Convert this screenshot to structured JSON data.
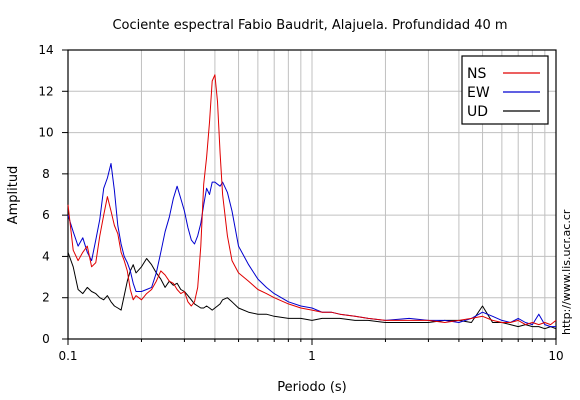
{
  "chart_data": {
    "type": "line",
    "title": "Cociente espectral Fabio Baudrit, Alajuela. Profundidad 40 m",
    "xlabel": "Periodo (s)",
    "ylabel": "Amplitud",
    "xscale": "log",
    "xlim": [
      0.1,
      10
    ],
    "ylim": [
      0,
      14
    ],
    "x_ticks": [
      "0.1",
      "1",
      "10"
    ],
    "y_ticks": [
      "0",
      "2",
      "4",
      "6",
      "8",
      "10",
      "12",
      "14"
    ],
    "grid": true,
    "legend_position": "top-right",
    "side_note": "http://www.lis.ucr.ac.cr",
    "series": [
      {
        "name": "NS",
        "color": "#e00000",
        "x": [
          0.1,
          0.105,
          0.11,
          0.115,
          0.12,
          0.125,
          0.13,
          0.135,
          0.14,
          0.145,
          0.15,
          0.155,
          0.16,
          0.165,
          0.17,
          0.175,
          0.18,
          0.185,
          0.19,
          0.2,
          0.21,
          0.22,
          0.23,
          0.24,
          0.25,
          0.26,
          0.27,
          0.28,
          0.29,
          0.3,
          0.31,
          0.32,
          0.33,
          0.34,
          0.35,
          0.36,
          0.37,
          0.38,
          0.39,
          0.4,
          0.41,
          0.42,
          0.43,
          0.45,
          0.47,
          0.5,
          0.55,
          0.6,
          0.65,
          0.7,
          0.8,
          0.9,
          1.0,
          1.1,
          1.2,
          1.3,
          1.5,
          1.7,
          2.0,
          2.5,
          3.0,
          3.5,
          4.0,
          4.5,
          5.0,
          5.5,
          6.0,
          6.5,
          7.0,
          7.5,
          8.0,
          8.5,
          9.0,
          9.5,
          10.0
        ],
        "y": [
          6.5,
          4.3,
          3.8,
          4.2,
          4.5,
          3.5,
          3.7,
          5.0,
          6.0,
          6.9,
          6.2,
          5.5,
          5.1,
          4.2,
          3.8,
          3.3,
          2.4,
          1.9,
          2.1,
          1.9,
          2.2,
          2.4,
          2.8,
          3.3,
          3.1,
          2.8,
          2.7,
          2.4,
          2.2,
          2.3,
          1.8,
          1.6,
          1.8,
          2.5,
          4.5,
          7.5,
          8.8,
          10.5,
          12.5,
          12.8,
          11.5,
          9.0,
          7.0,
          5.0,
          3.8,
          3.2,
          2.8,
          2.4,
          2.2,
          2.0,
          1.7,
          1.5,
          1.4,
          1.3,
          1.3,
          1.2,
          1.1,
          1.0,
          0.9,
          0.9,
          0.9,
          0.8,
          0.9,
          1.0,
          1.1,
          0.9,
          0.8,
          0.8,
          0.9,
          0.7,
          0.8,
          0.7,
          0.8,
          0.7,
          0.9
        ]
      },
      {
        "name": "EW",
        "color": "#0000d0",
        "x": [
          0.1,
          0.105,
          0.11,
          0.115,
          0.12,
          0.125,
          0.13,
          0.135,
          0.14,
          0.145,
          0.15,
          0.155,
          0.16,
          0.165,
          0.17,
          0.175,
          0.18,
          0.185,
          0.19,
          0.2,
          0.21,
          0.22,
          0.23,
          0.24,
          0.25,
          0.26,
          0.27,
          0.28,
          0.29,
          0.3,
          0.31,
          0.32,
          0.33,
          0.34,
          0.35,
          0.36,
          0.37,
          0.38,
          0.39,
          0.4,
          0.41,
          0.42,
          0.43,
          0.45,
          0.47,
          0.5,
          0.55,
          0.6,
          0.65,
          0.7,
          0.8,
          0.9,
          1.0,
          1.1,
          1.2,
          1.3,
          1.5,
          1.7,
          2.0,
          2.5,
          3.0,
          3.5,
          4.0,
          4.5,
          5.0,
          5.5,
          6.0,
          6.5,
          7.0,
          7.5,
          8.0,
          8.5,
          9.0,
          9.5,
          10.0
        ],
        "y": [
          6.0,
          5.2,
          4.5,
          4.9,
          4.2,
          3.8,
          4.8,
          5.8,
          7.3,
          7.8,
          8.5,
          7.2,
          5.5,
          4.6,
          4.0,
          3.7,
          3.3,
          2.7,
          2.3,
          2.3,
          2.4,
          2.5,
          3.2,
          4.2,
          5.2,
          5.9,
          6.8,
          7.4,
          6.8,
          6.2,
          5.4,
          4.8,
          4.6,
          5.0,
          5.6,
          6.5,
          7.3,
          7.0,
          7.6,
          7.6,
          7.5,
          7.4,
          7.6,
          7.1,
          6.2,
          4.5,
          3.6,
          2.9,
          2.5,
          2.2,
          1.8,
          1.6,
          1.5,
          1.3,
          1.3,
          1.2,
          1.1,
          1.0,
          0.9,
          1.0,
          0.9,
          0.9,
          0.8,
          1.0,
          1.3,
          1.1,
          0.9,
          0.8,
          1.0,
          0.8,
          0.7,
          1.2,
          0.7,
          0.6,
          0.6
        ]
      },
      {
        "name": "UD",
        "color": "#000000",
        "x": [
          0.1,
          0.105,
          0.11,
          0.115,
          0.12,
          0.125,
          0.13,
          0.135,
          0.14,
          0.145,
          0.15,
          0.155,
          0.16,
          0.165,
          0.17,
          0.175,
          0.18,
          0.185,
          0.19,
          0.2,
          0.21,
          0.22,
          0.23,
          0.24,
          0.25,
          0.26,
          0.27,
          0.28,
          0.29,
          0.3,
          0.31,
          0.32,
          0.33,
          0.34,
          0.35,
          0.36,
          0.37,
          0.38,
          0.39,
          0.4,
          0.41,
          0.42,
          0.43,
          0.45,
          0.47,
          0.5,
          0.55,
          0.6,
          0.65,
          0.7,
          0.8,
          0.9,
          1.0,
          1.1,
          1.2,
          1.3,
          1.5,
          1.7,
          2.0,
          2.5,
          3.0,
          3.5,
          4.0,
          4.5,
          5.0,
          5.5,
          6.0,
          6.5,
          7.0,
          7.5,
          8.0,
          8.5,
          9.0,
          9.5,
          10.0
        ],
        "y": [
          4.2,
          3.5,
          2.4,
          2.2,
          2.5,
          2.3,
          2.2,
          2.0,
          1.9,
          2.1,
          1.8,
          1.6,
          1.5,
          1.4,
          2.1,
          2.8,
          3.3,
          3.6,
          3.2,
          3.5,
          3.9,
          3.6,
          3.2,
          2.9,
          2.5,
          2.8,
          2.6,
          2.7,
          2.4,
          2.3,
          2.1,
          1.9,
          1.7,
          1.6,
          1.5,
          1.5,
          1.6,
          1.5,
          1.4,
          1.5,
          1.6,
          1.7,
          1.9,
          2.0,
          1.8,
          1.5,
          1.3,
          1.2,
          1.2,
          1.1,
          1.0,
          1.0,
          0.9,
          1.0,
          1.0,
          1.0,
          0.9,
          0.9,
          0.8,
          0.8,
          0.8,
          0.9,
          0.9,
          0.8,
          1.6,
          0.8,
          0.8,
          0.7,
          0.6,
          0.7,
          0.6,
          0.6,
          0.5,
          0.6,
          0.5
        ]
      }
    ]
  }
}
